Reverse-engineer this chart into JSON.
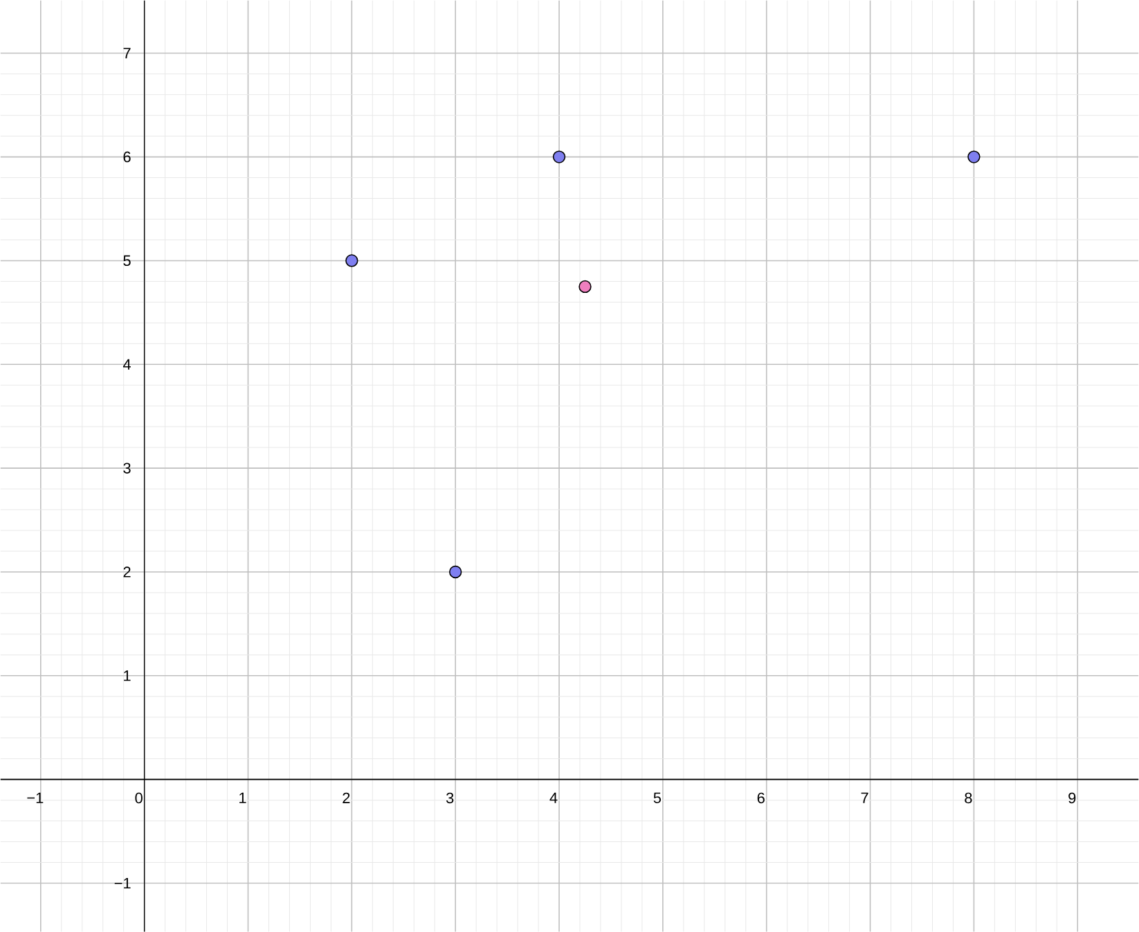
{
  "chart_data": {
    "type": "scatter",
    "series": [
      {
        "color": "#7f7ff0",
        "x": [
          2,
          3,
          4,
          8
        ],
        "values": [
          5,
          2,
          6,
          6
        ]
      },
      {
        "color": "#ef7fbf",
        "x": [
          4.25
        ],
        "values": [
          4.75
        ]
      }
    ],
    "xlim": [
      -1.387,
      9.587
    ],
    "ylim": [
      -1.467,
      7.507
    ],
    "xticks": [
      {
        "value": -1,
        "label": "−1"
      },
      0,
      1,
      2,
      3,
      4,
      5,
      6,
      7,
      8,
      9
    ],
    "yticks": [
      {
        "value": -1,
        "label": "−1"
      },
      {
        "value": 0,
        "label": null
      },
      1,
      2,
      3,
      4,
      5,
      6,
      7
    ],
    "grid": true,
    "marker": "circle"
  }
}
